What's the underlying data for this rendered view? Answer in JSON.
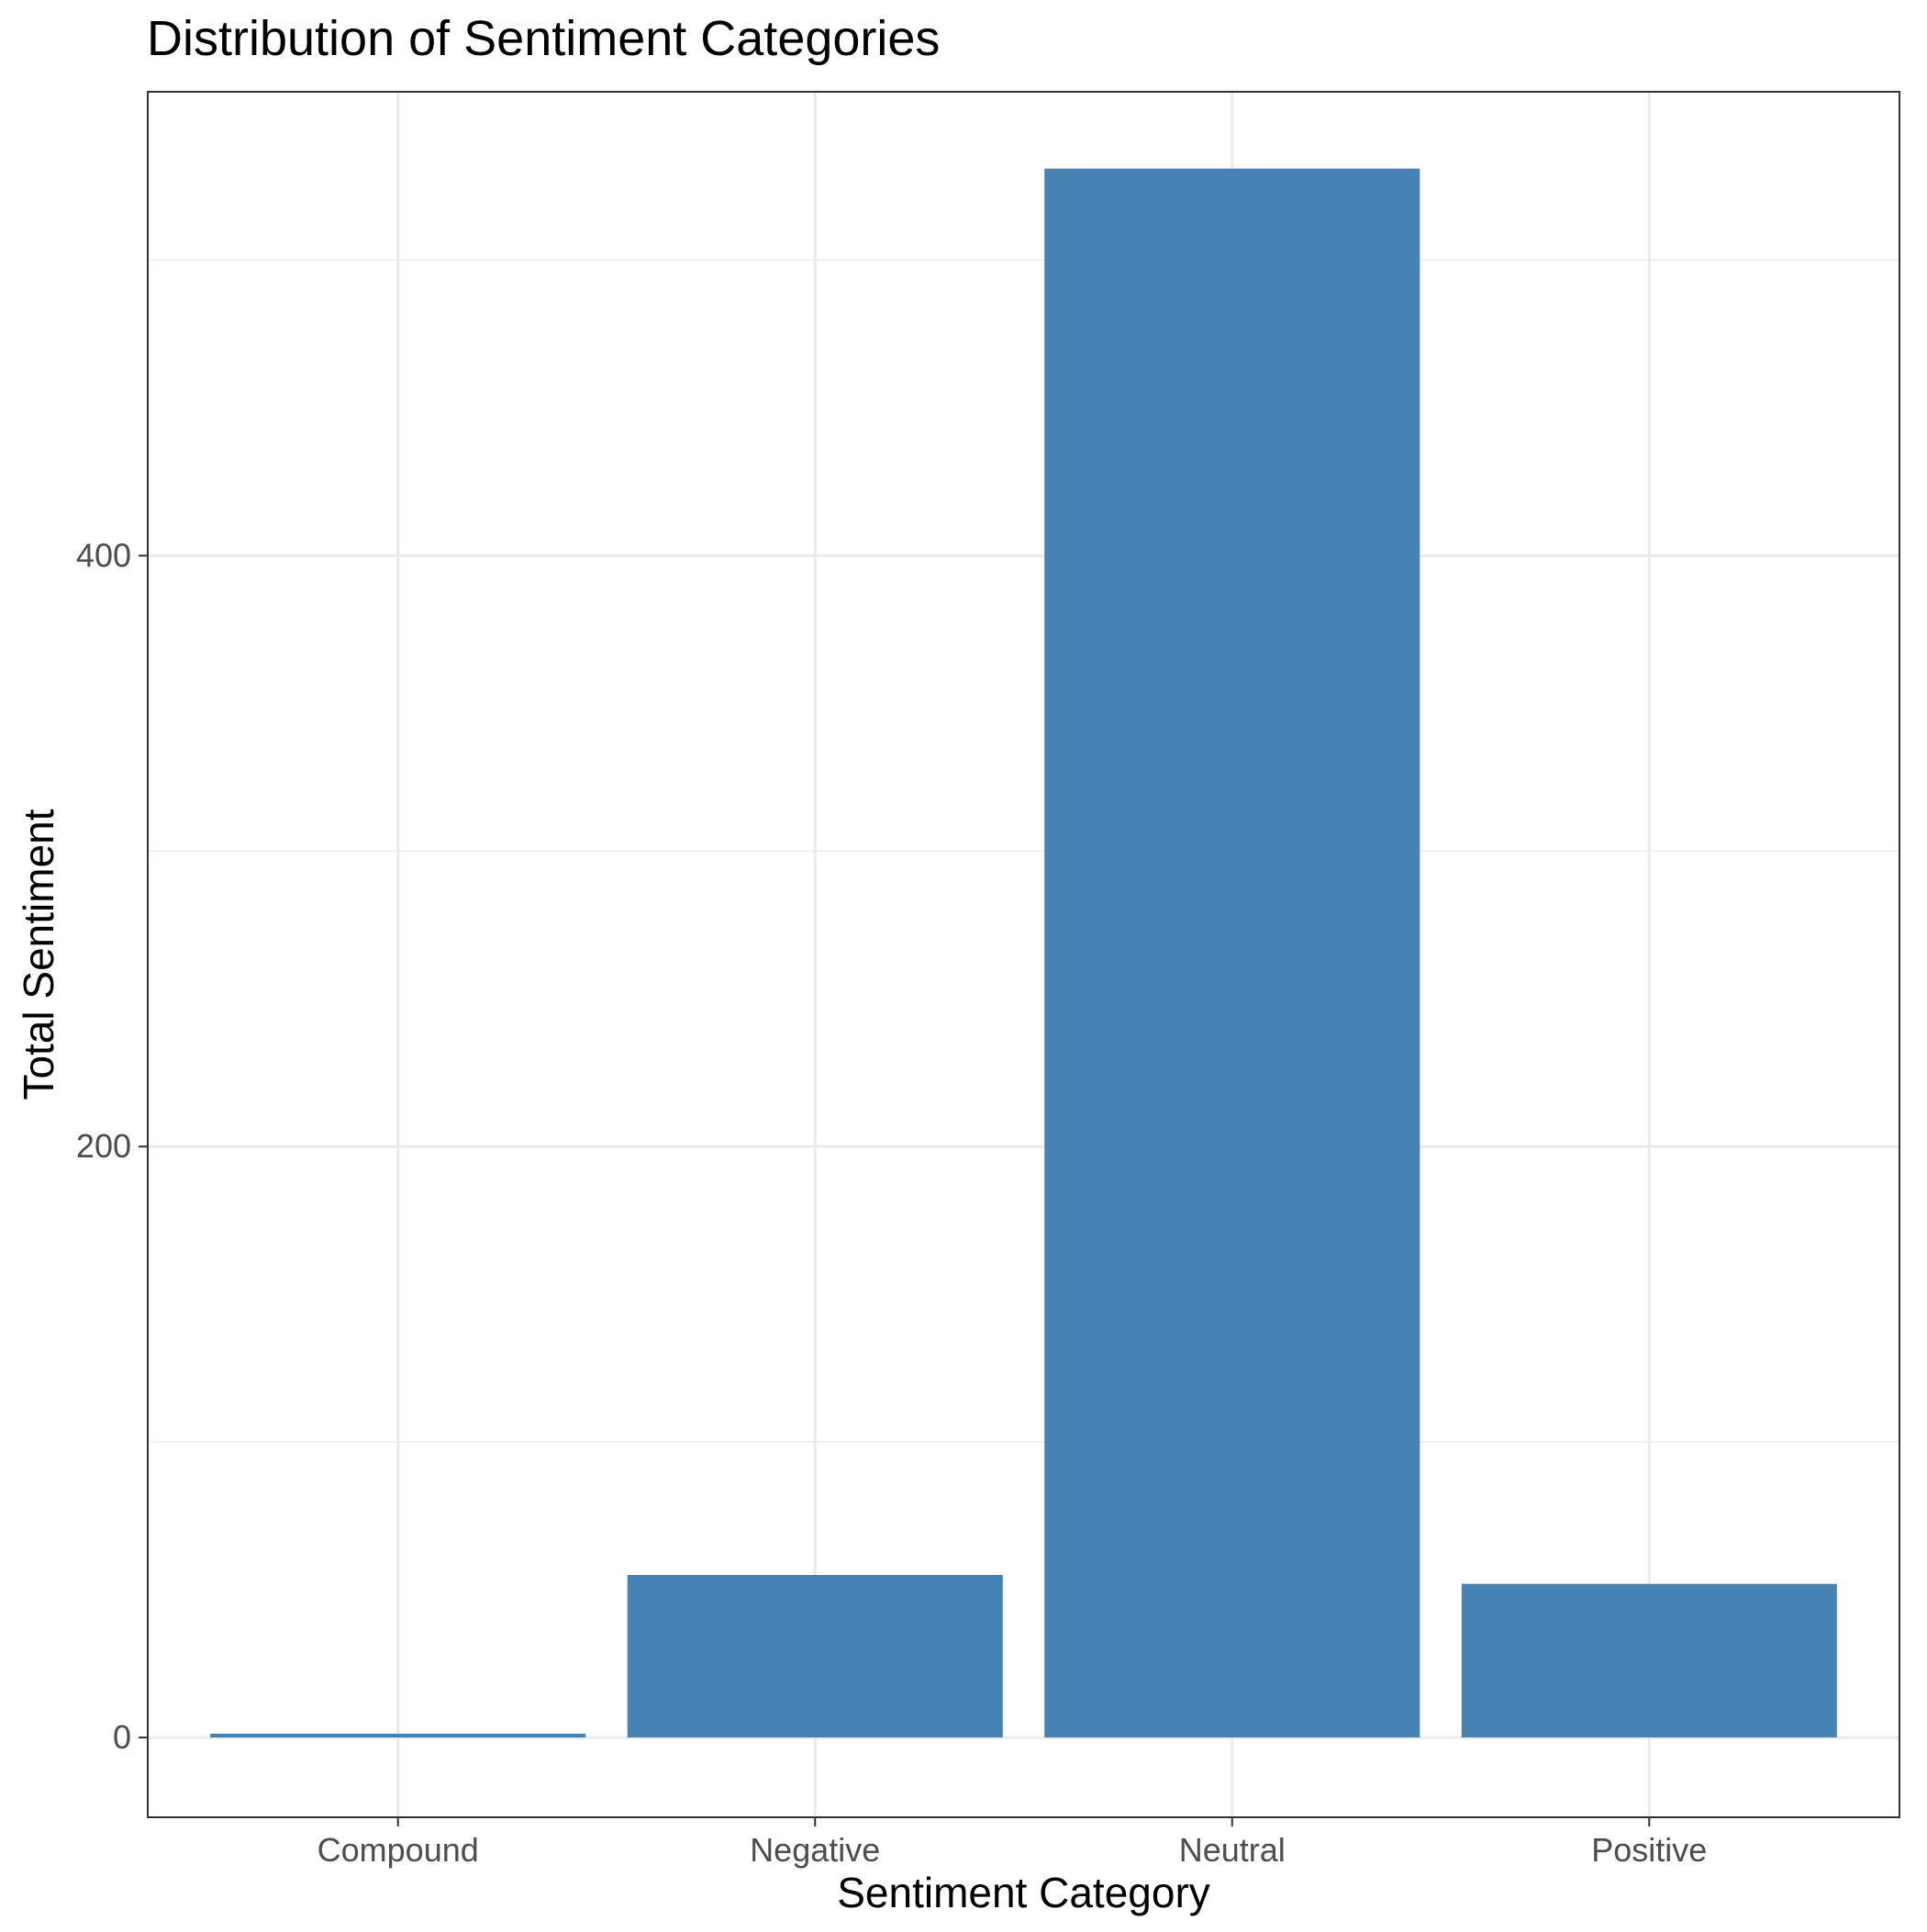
{
  "chart_data": {
    "type": "bar",
    "title": "Distribution of Sentiment Categories",
    "xlabel": "Sentiment Category",
    "ylabel": "Total Sentiment",
    "categories": [
      "Compound",
      "Negative",
      "Neutral",
      "Positive"
    ],
    "values": [
      1.3,
      55,
      531,
      52
    ],
    "ylim": [
      -27,
      557
    ],
    "y_ticks": [
      0,
      200,
      400
    ],
    "y_tick_labels": [
      "0",
      "200",
      "400"
    ],
    "y_minor_ticks": [
      100,
      300,
      500
    ],
    "grid": true,
    "legend": "none",
    "bar_color": "#4682B4",
    "grid_color": "#EBEBEB",
    "panel_border_color": "#333333"
  }
}
